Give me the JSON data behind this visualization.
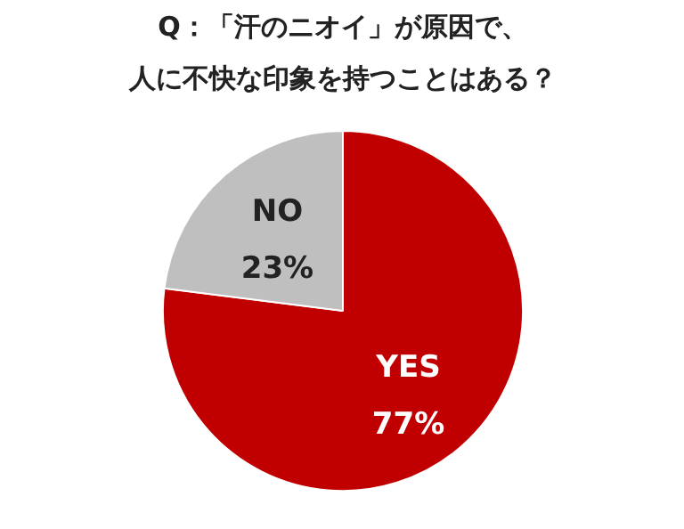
{
  "chart_data": {
    "type": "pie",
    "title": "Q：「汗のニオイ」が原因で、人に不快な印象を持つことはある？",
    "categories": [
      "YES",
      "NO"
    ],
    "values": [
      77,
      23
    ],
    "colors": [
      "#c00000",
      "#bfbfbf"
    ],
    "value_labels": [
      "77%",
      "23%"
    ],
    "legend": false
  }
}
